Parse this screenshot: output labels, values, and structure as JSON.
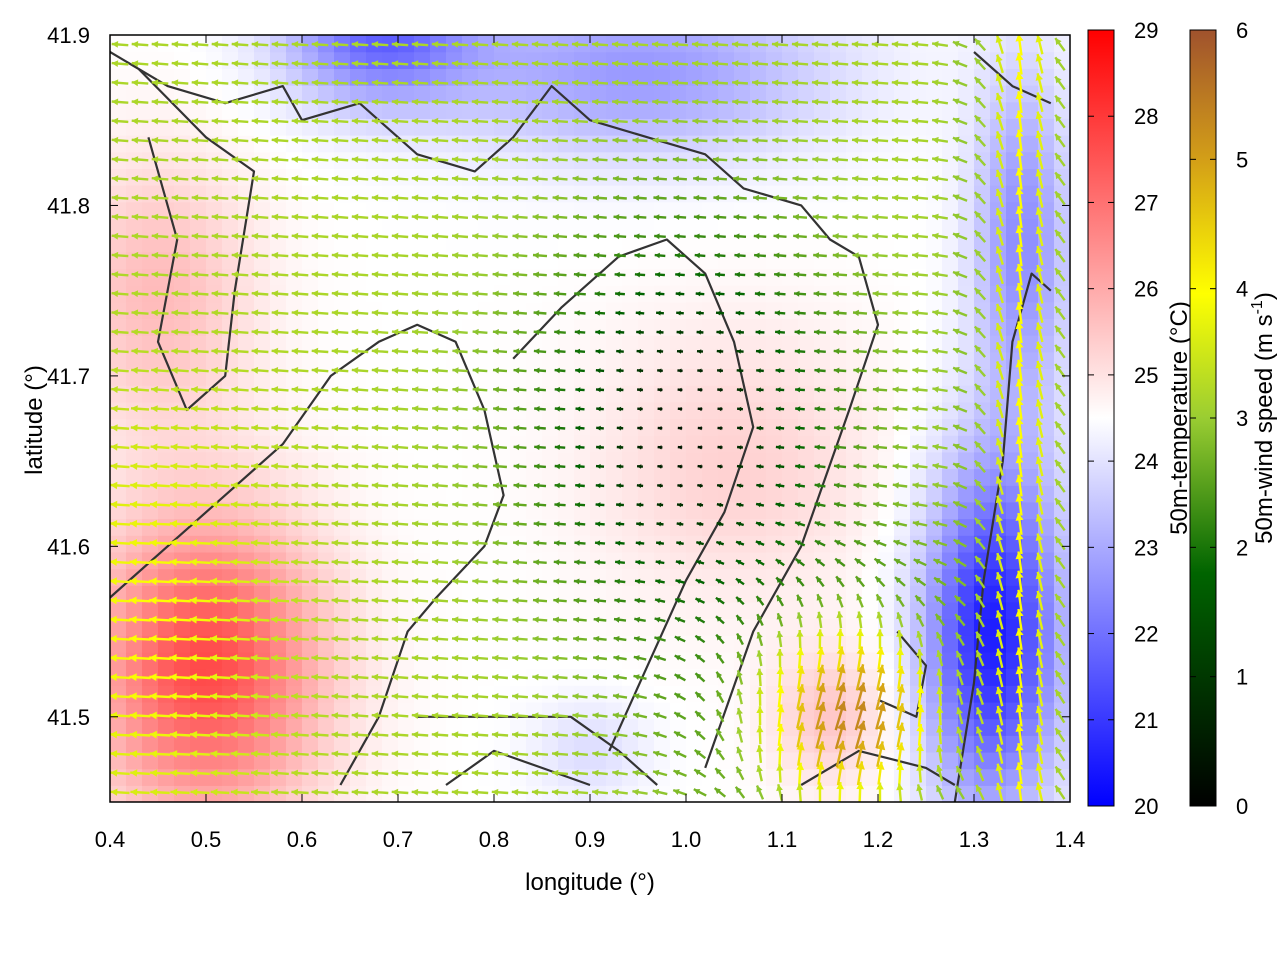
{
  "chart_data": {
    "type": "heatmap",
    "title": "",
    "xlabel": "longitude (°)",
    "ylabel": "latitude (°)",
    "xlim": [
      0.4,
      1.4
    ],
    "ylim": [
      41.45,
      41.9
    ],
    "xticks": [
      "0.4",
      "0.5",
      "0.6",
      "0.7",
      "0.8",
      "0.9",
      "1.0",
      "1.1",
      "1.2",
      "1.3",
      "1.4"
    ],
    "yticks": [
      "41.5",
      "41.6",
      "41.7",
      "41.8",
      "41.9"
    ],
    "grid": false,
    "overlay": "wind vector arrows colored by 50m wind speed, coastline/terrain contour lines",
    "temperature_colorbar": {
      "label": "50m-temperature (°C)",
      "range": [
        20,
        29
      ],
      "ticks": [
        "20",
        "21",
        "22",
        "23",
        "24",
        "25",
        "26",
        "27",
        "28",
        "29"
      ],
      "colors": [
        "#0000ff",
        "#ffffff",
        "#ff0000"
      ]
    },
    "wind_colorbar": {
      "label_main": "50m-wind speed (m s",
      "label_sup": "-1",
      "label_end": ")",
      "range": [
        0,
        6
      ],
      "ticks": [
        "0",
        "1",
        "2",
        "3",
        "4",
        "5",
        "6"
      ],
      "colors": [
        "#000000",
        "#006400",
        "#9acd32",
        "#ffff00",
        "#d4a017",
        "#a0522d"
      ]
    },
    "temperature_field_notes": [
      {
        "region": "southwest (lon 0.4-0.6, lat 41.45-41.65)",
        "temp_c": 27.5
      },
      {
        "region": "north (lon 0.6-0.75, lat 41.88-41.9)",
        "temp_c": 22
      },
      {
        "region": "southeast (lon 1.25-1.38, lat 41.45-41.6)",
        "temp_c": 20.5
      },
      {
        "region": "center (lon 0.85-1.15, lat 41.6-41.75)",
        "temp_c": 25
      }
    ],
    "wind_field_notes": [
      {
        "region": "west / southwest",
        "speed_ms": 3,
        "direction": "westward"
      },
      {
        "region": "center",
        "speed_ms": 0.5,
        "direction": "weak / variable"
      },
      {
        "region": "southeast (lon 1.1-1.3, lat 41.45-41.55)",
        "speed_ms": 5.5,
        "direction": "northward / north-eastward"
      },
      {
        "region": "east edge (lon 1.3-1.4)",
        "speed_ms": 3.5,
        "direction": "northward"
      }
    ]
  }
}
